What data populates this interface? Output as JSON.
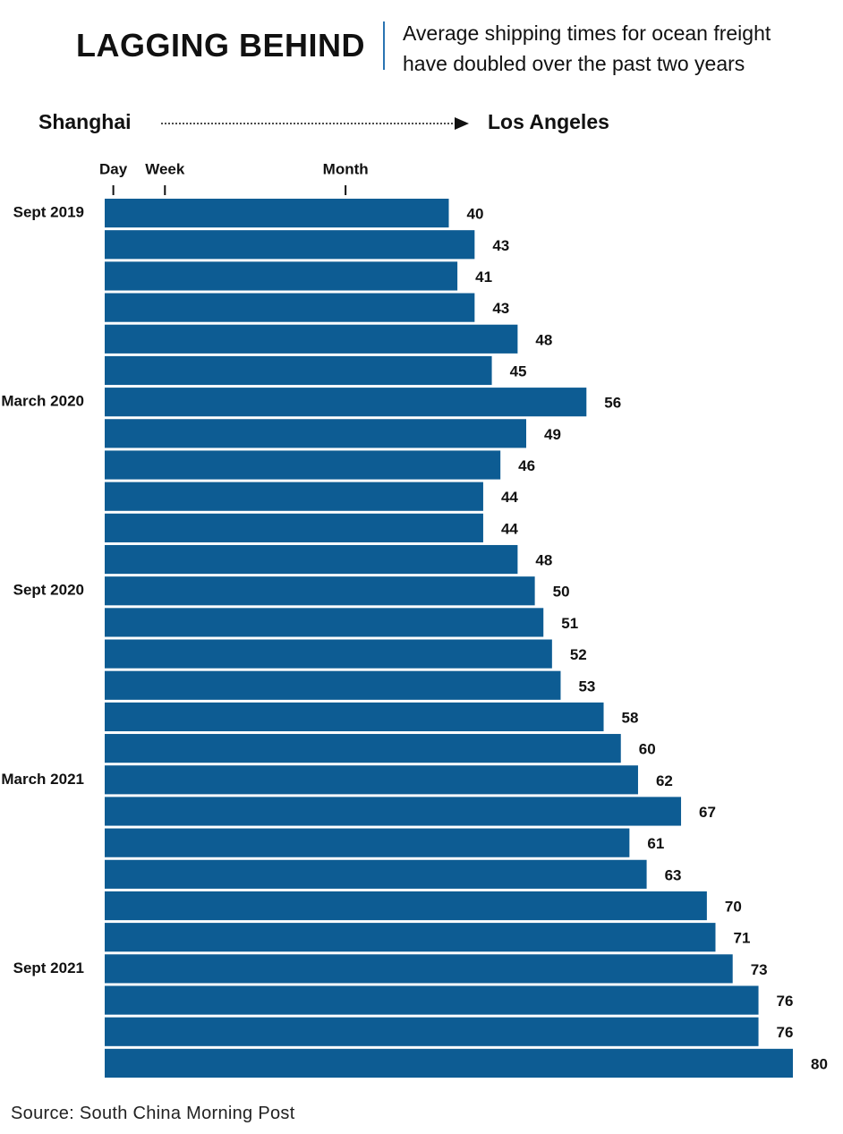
{
  "chart_data": {
    "type": "bar",
    "orientation": "horizontal",
    "title": "LAGGING BEHIND",
    "subtitle": "Average shipping times for ocean freight have doubled over the past two years",
    "origin_label": "Shanghai",
    "destination_label": "Los Angeles",
    "source": "Source: South China Morning Post",
    "categories": [
      "Sept 2019",
      null,
      null,
      null,
      null,
      null,
      "March 2020",
      null,
      null,
      null,
      null,
      null,
      "Sept 2020",
      null,
      null,
      null,
      null,
      null,
      "March 2021",
      null,
      null,
      null,
      null,
      null,
      "Sept 2021",
      null,
      null,
      null
    ],
    "values": [
      40,
      43,
      41,
      43,
      48,
      45,
      56,
      49,
      46,
      44,
      44,
      48,
      50,
      51,
      52,
      53,
      58,
      60,
      62,
      67,
      61,
      63,
      70,
      71,
      73,
      76,
      76,
      80
    ],
    "color": "#0d5c93",
    "xlim": [
      0,
      80
    ],
    "xticks": [
      {
        "value": 1,
        "label": "Day"
      },
      {
        "value": 7,
        "label": "Week"
      },
      {
        "value": 28,
        "label": "Month"
      }
    ],
    "grid": false
  }
}
